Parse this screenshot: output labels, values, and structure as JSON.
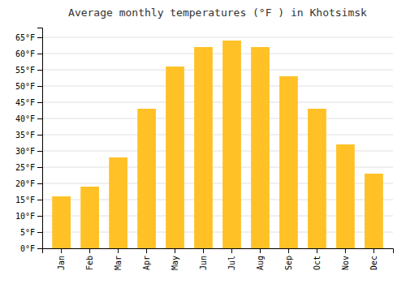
{
  "chart_data": {
    "type": "bar",
    "title": "Average monthly temperatures (°F ) in Khotsimsk",
    "categories": [
      "Jan",
      "Feb",
      "Mar",
      "Apr",
      "May",
      "Jun",
      "Jul",
      "Aug",
      "Sep",
      "Oct",
      "Nov",
      "Dec"
    ],
    "values": [
      16,
      19,
      28,
      43,
      56,
      62,
      64,
      62,
      53,
      43,
      32,
      23
    ],
    "color": "#FFC125",
    "ylim": [
      0,
      68
    ],
    "yticks": [
      {
        "value": 0,
        "label": "0°F"
      },
      {
        "value": 5,
        "label": "5°F"
      },
      {
        "value": 10,
        "label": "10°F"
      },
      {
        "value": 15,
        "label": "15°F"
      },
      {
        "value": 20,
        "label": "20°F"
      },
      {
        "value": 25,
        "label": "25°F"
      },
      {
        "value": 30,
        "label": "30°F"
      },
      {
        "value": 35,
        "label": "35°F"
      },
      {
        "value": 40,
        "label": "40°F"
      },
      {
        "value": 45,
        "label": "45°F"
      },
      {
        "value": 50,
        "label": "50°F"
      },
      {
        "value": 55,
        "label": "55°F"
      },
      {
        "value": 60,
        "label": "60°F"
      },
      {
        "value": 65,
        "label": "65°F"
      }
    ],
    "grid": true
  }
}
